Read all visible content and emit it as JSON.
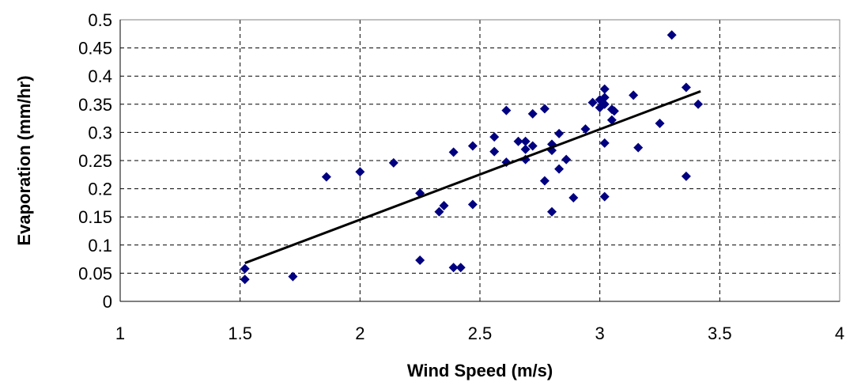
{
  "chart_data": {
    "type": "scatter",
    "title": "",
    "xlabel": "Wind Speed (m/s)",
    "ylabel": "Evaporation (mm/hr)",
    "xlim": [
      1,
      4
    ],
    "ylim": [
      0,
      0.5
    ],
    "x_ticks": [
      "1",
      "1.5",
      "2",
      "2.5",
      "3",
      "3.5",
      "4"
    ],
    "y_ticks": [
      "0",
      "0.05",
      "0.1",
      "0.15",
      "0.2",
      "0.25",
      "0.3",
      "0.35",
      "0.4",
      "0.45",
      "0.5"
    ],
    "grid": true,
    "marker_color": "#000080",
    "trendline": {
      "type": "linear",
      "x": [
        1.52,
        3.42
      ],
      "y": [
        0.068,
        0.373
      ],
      "color": "#000000"
    },
    "points": [
      [
        1.52,
        0.058
      ],
      [
        1.52,
        0.039
      ],
      [
        1.72,
        0.044
      ],
      [
        1.86,
        0.221
      ],
      [
        2.0,
        0.23
      ],
      [
        2.14,
        0.246
      ],
      [
        2.25,
        0.192
      ],
      [
        2.25,
        0.073
      ],
      [
        2.33,
        0.159
      ],
      [
        2.35,
        0.17
      ],
      [
        2.39,
        0.265
      ],
      [
        2.39,
        0.06
      ],
      [
        2.42,
        0.06
      ],
      [
        2.47,
        0.276
      ],
      [
        2.47,
        0.172
      ],
      [
        2.56,
        0.292
      ],
      [
        2.56,
        0.266
      ],
      [
        2.61,
        0.339
      ],
      [
        2.61,
        0.247
      ],
      [
        2.66,
        0.284
      ],
      [
        2.69,
        0.284
      ],
      [
        2.69,
        0.27
      ],
      [
        2.69,
        0.252
      ],
      [
        2.72,
        0.333
      ],
      [
        2.72,
        0.276
      ],
      [
        2.77,
        0.342
      ],
      [
        2.77,
        0.214
      ],
      [
        2.8,
        0.279
      ],
      [
        2.8,
        0.268
      ],
      [
        2.8,
        0.159
      ],
      [
        2.83,
        0.298
      ],
      [
        2.83,
        0.235
      ],
      [
        2.86,
        0.252
      ],
      [
        2.89,
        0.184
      ],
      [
        2.94,
        0.306
      ],
      [
        2.97,
        0.353
      ],
      [
        3.0,
        0.358
      ],
      [
        3.0,
        0.344
      ],
      [
        3.02,
        0.377
      ],
      [
        3.02,
        0.362
      ],
      [
        3.02,
        0.35
      ],
      [
        3.02,
        0.281
      ],
      [
        3.02,
        0.186
      ],
      [
        3.05,
        0.341
      ],
      [
        3.05,
        0.322
      ],
      [
        3.06,
        0.338
      ],
      [
        3.14,
        0.366
      ],
      [
        3.16,
        0.273
      ],
      [
        3.25,
        0.316
      ],
      [
        3.3,
        0.473
      ],
      [
        3.36,
        0.38
      ],
      [
        3.36,
        0.222
      ],
      [
        3.41,
        0.35
      ]
    ]
  }
}
